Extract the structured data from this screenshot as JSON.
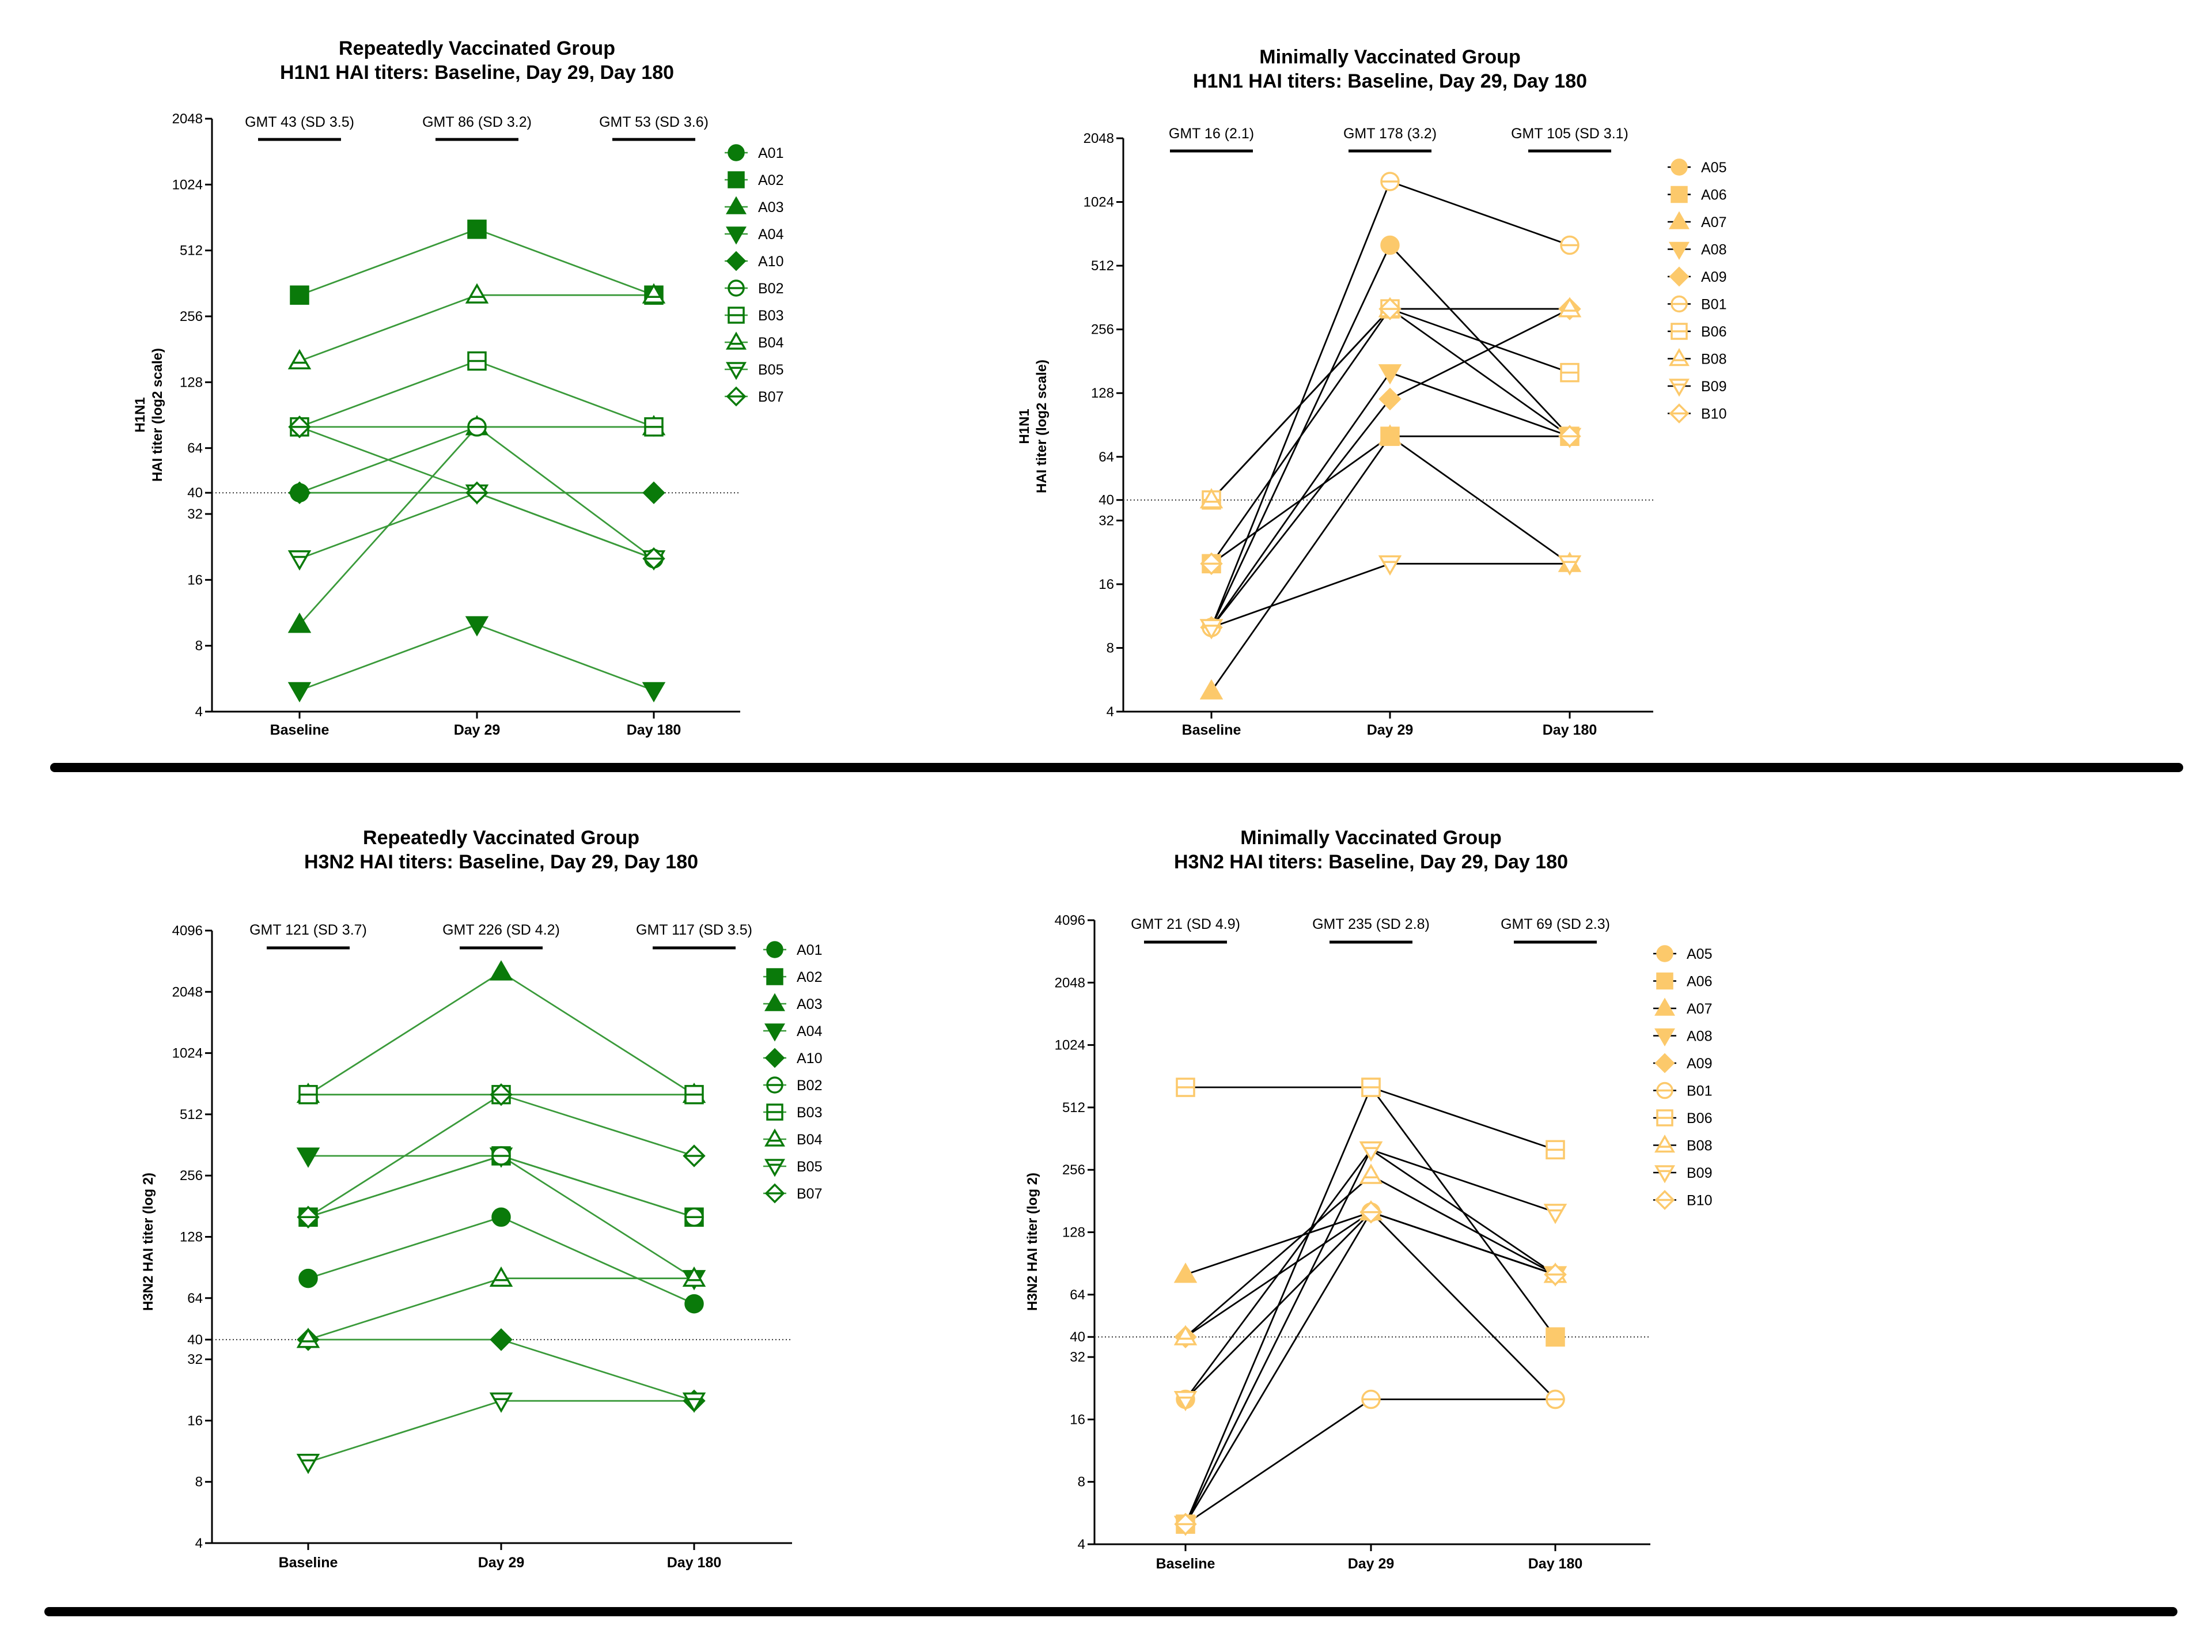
{
  "chart_data": [
    {
      "type": "line",
      "title": "Repeatedly Vaccinated Group",
      "subtitle": "H1N1 HAI titers: Baseline, Day 29, Day 180",
      "ylabel_lines": [
        "H1N1",
        "HAI titer (log2 scale)"
      ],
      "categories": [
        "Baseline",
        "Day 29",
        "Day 180"
      ],
      "y_scale": "log2",
      "ylim": [
        4,
        2048
      ],
      "yticks": [
        4,
        8,
        16,
        32,
        40,
        64,
        128,
        256,
        512,
        1024,
        2048
      ],
      "reference_line": 40,
      "gmt_labels": [
        "GMT 43 (SD 3.5)",
        "GMT 86 (SD 3.2)",
        "GMT 53 (SD 3.6)"
      ],
      "line_color": "#3a9a3a",
      "marker_color": "#0a7a0a",
      "series": [
        {
          "name": "A01",
          "marker": "circle",
          "filled": true,
          "values": [
            40,
            80,
            80
          ]
        },
        {
          "name": "A02",
          "marker": "square",
          "filled": true,
          "values": [
            320,
            640,
            320
          ]
        },
        {
          "name": "A03",
          "marker": "triangle-up",
          "filled": true,
          "values": [
            10,
            80,
            80
          ]
        },
        {
          "name": "A04",
          "marker": "triangle-down",
          "filled": true,
          "values": [
            5,
            10,
            5
          ]
        },
        {
          "name": "A10",
          "marker": "diamond",
          "filled": true,
          "values": [
            40,
            40,
            40
          ]
        },
        {
          "name": "B02",
          "marker": "circle",
          "filled": false,
          "values": [
            80,
            80,
            20
          ]
        },
        {
          "name": "B03",
          "marker": "square",
          "filled": false,
          "values": [
            80,
            160,
            80
          ]
        },
        {
          "name": "B04",
          "marker": "triangle-up",
          "filled": false,
          "values": [
            160,
            320,
            320
          ]
        },
        {
          "name": "B05",
          "marker": "triangle-down",
          "filled": false,
          "values": [
            20,
            40,
            20
          ]
        },
        {
          "name": "B07",
          "marker": "diamond",
          "filled": false,
          "values": [
            80,
            40,
            20
          ]
        }
      ]
    },
    {
      "type": "line",
      "title": "Minimally Vaccinated Group",
      "subtitle": "H1N1 HAI titers: Baseline, Day 29, Day 180",
      "ylabel_lines": [
        "H1N1",
        "HAI titer (log2 scale)"
      ],
      "categories": [
        "Baseline",
        "Day 29",
        "Day 180"
      ],
      "y_scale": "log2",
      "ylim": [
        4,
        2048
      ],
      "yticks": [
        4,
        8,
        16,
        32,
        40,
        64,
        128,
        256,
        512,
        1024,
        2048
      ],
      "reference_line": 40,
      "gmt_labels": [
        "GMT 16 (2.1)",
        "GMT 178 (3.2)",
        "GMT 105 (SD 3.1)"
      ],
      "line_color": "#000000",
      "marker_color": "#fcc96b",
      "series": [
        {
          "name": "A05",
          "marker": "circle",
          "filled": true,
          "values": [
            10,
            640,
            80
          ]
        },
        {
          "name": "A06",
          "marker": "square",
          "filled": true,
          "values": [
            20,
            80,
            80
          ]
        },
        {
          "name": "A07",
          "marker": "triangle-up",
          "filled": true,
          "values": [
            5,
            80,
            20
          ]
        },
        {
          "name": "A08",
          "marker": "triangle-down",
          "filled": true,
          "values": [
            10,
            160,
            80
          ]
        },
        {
          "name": "A09",
          "marker": "diamond",
          "filled": true,
          "values": [
            10,
            120,
            320
          ]
        },
        {
          "name": "B01",
          "marker": "circle",
          "filled": false,
          "values": [
            10,
            1280,
            640
          ]
        },
        {
          "name": "B06",
          "marker": "square",
          "filled": false,
          "values": [
            40,
            320,
            160
          ]
        },
        {
          "name": "B08",
          "marker": "triangle-up",
          "filled": false,
          "values": [
            40,
            320,
            320
          ]
        },
        {
          "name": "B09",
          "marker": "triangle-down",
          "filled": false,
          "values": [
            10,
            20,
            20
          ]
        },
        {
          "name": "B10",
          "marker": "diamond",
          "filled": false,
          "values": [
            20,
            320,
            80
          ]
        }
      ]
    },
    {
      "type": "line",
      "title": "Repeatedly Vaccinated Group",
      "subtitle": "H3N2 HAI titers: Baseline, Day 29, Day 180",
      "ylabel_lines": [
        "H3N2 HAI titer (log 2)"
      ],
      "categories": [
        "Baseline",
        "Day 29",
        "Day 180"
      ],
      "y_scale": "log2",
      "ylim": [
        4,
        4096
      ],
      "yticks": [
        4,
        8,
        16,
        32,
        40,
        64,
        128,
        256,
        512,
        1024,
        2048,
        4096
      ],
      "reference_line": 40,
      "gmt_labels": [
        "GMT 121 (SD 3.7)",
        "GMT 226 (SD 4.2)",
        "GMT  117 (SD 3.5)"
      ],
      "line_color": "#3a9a3a",
      "marker_color": "#0a7a0a",
      "series": [
        {
          "name": "A01",
          "marker": "circle",
          "filled": true,
          "values": [
            80,
            160,
            60
          ]
        },
        {
          "name": "A02",
          "marker": "square",
          "filled": true,
          "values": [
            160,
            320,
            160
          ]
        },
        {
          "name": "A03",
          "marker": "triangle-up",
          "filled": true,
          "values": [
            640,
            2560,
            640
          ]
        },
        {
          "name": "A04",
          "marker": "triangle-down",
          "filled": true,
          "values": [
            320,
            320,
            80
          ]
        },
        {
          "name": "A10",
          "marker": "diamond",
          "filled": true,
          "values": [
            40,
            40,
            20
          ]
        },
        {
          "name": "B02",
          "marker": "circle",
          "filled": false,
          "values": [
            160,
            320,
            160
          ]
        },
        {
          "name": "B03",
          "marker": "square",
          "filled": false,
          "values": [
            640,
            640,
            640
          ]
        },
        {
          "name": "B04",
          "marker": "triangle-up",
          "filled": false,
          "values": [
            40,
            80,
            80
          ]
        },
        {
          "name": "B05",
          "marker": "triangle-down",
          "filled": false,
          "values": [
            10,
            20,
            20
          ]
        },
        {
          "name": "B07",
          "marker": "diamond",
          "filled": false,
          "values": [
            160,
            640,
            320
          ]
        }
      ]
    },
    {
      "type": "line",
      "title": "Minimally Vaccinated Group",
      "subtitle": "H3N2 HAI titers: Baseline, Day 29, Day 180",
      "ylabel_lines": [
        "H3N2 HAI titer (log 2)"
      ],
      "categories": [
        "Baseline",
        "Day 29",
        "Day 180"
      ],
      "y_scale": "log2",
      "ylim": [
        4,
        4096
      ],
      "yticks": [
        4,
        8,
        16,
        32,
        40,
        64,
        128,
        256,
        512,
        1024,
        2048,
        4096
      ],
      "reference_line": 40,
      "gmt_labels": [
        "GMT 21 (SD 4.9)",
        "GMT  235 (SD 2.8)",
        "GMT  69 (SD 2.3)"
      ],
      "line_color": "#000000",
      "marker_color": "#fcc96b",
      "series": [
        {
          "name": "A05",
          "marker": "circle",
          "filled": true,
          "values": [
            20,
            160,
            20
          ]
        },
        {
          "name": "A06",
          "marker": "square",
          "filled": true,
          "values": [
            5,
            640,
            40
          ]
        },
        {
          "name": "A07",
          "marker": "triangle-up",
          "filled": true,
          "values": [
            80,
            160,
            80
          ]
        },
        {
          "name": "A08",
          "marker": "triangle-down",
          "filled": true,
          "values": [
            5,
            320,
            80
          ]
        },
        {
          "name": "A09",
          "marker": "diamond",
          "filled": true,
          "values": [
            40,
            160,
            80
          ]
        },
        {
          "name": "B01",
          "marker": "circle",
          "filled": false,
          "values": [
            5,
            20,
            20
          ]
        },
        {
          "name": "B06",
          "marker": "square",
          "filled": false,
          "values": [
            640,
            640,
            320
          ]
        },
        {
          "name": "B08",
          "marker": "triangle-up",
          "filled": false,
          "values": [
            40,
            240,
            80
          ]
        },
        {
          "name": "B09",
          "marker": "triangle-down",
          "filled": false,
          "values": [
            20,
            320,
            160
          ]
        },
        {
          "name": "B10",
          "marker": "diamond",
          "filled": false,
          "values": [
            5,
            160,
            80
          ]
        }
      ]
    }
  ]
}
